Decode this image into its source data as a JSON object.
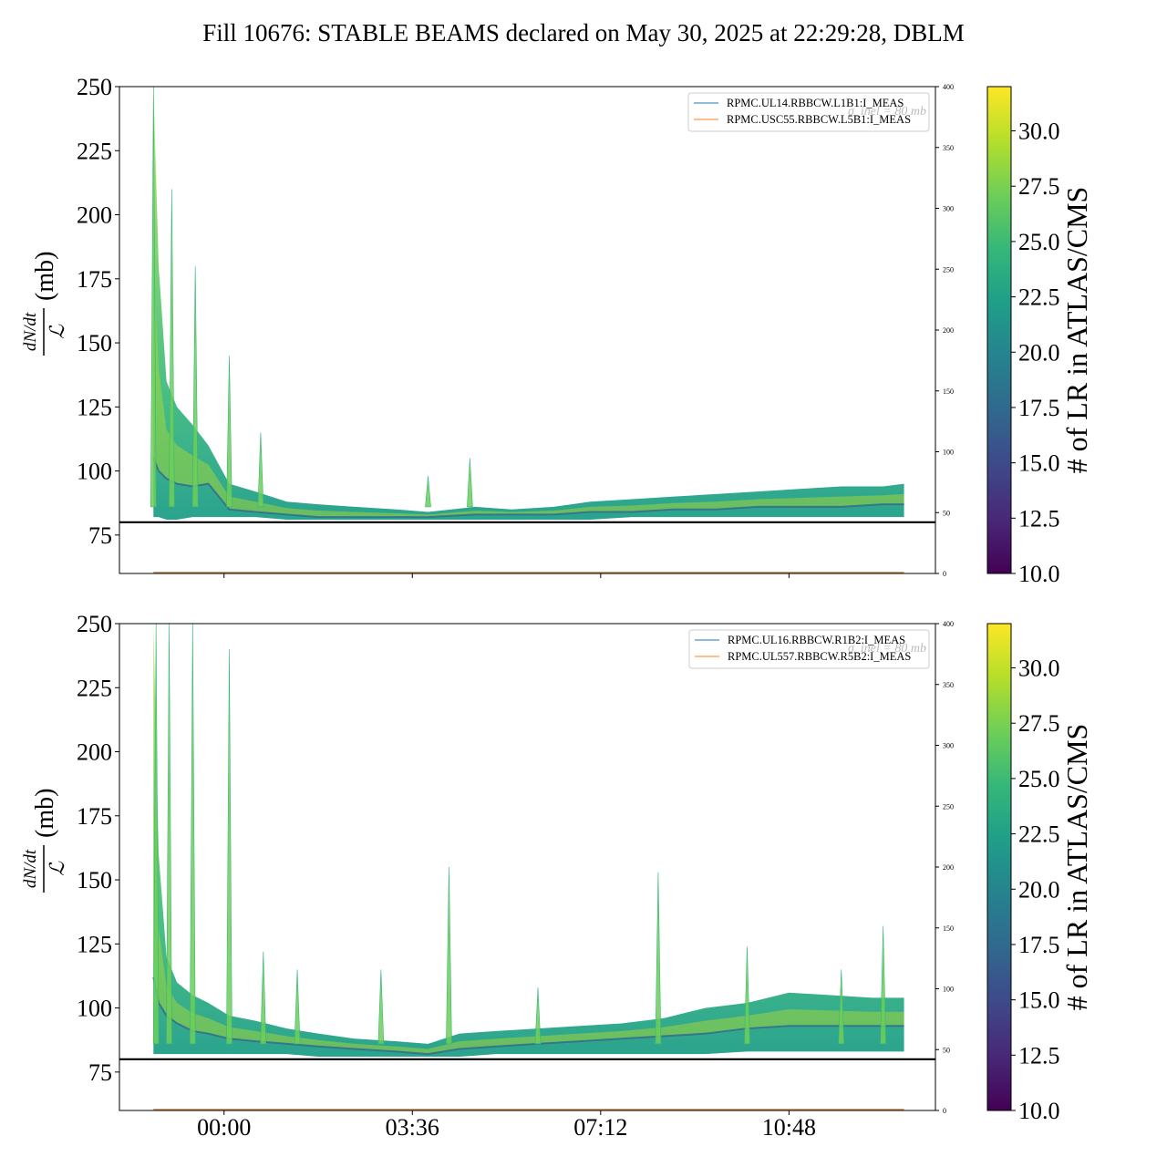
{
  "title": "Fill 10676: STABLE BEAMS declared on May 30, 2025 at 22:29:28, DBLM",
  "colors": {
    "viridis": [
      "#440154",
      "#482878",
      "#3e4989",
      "#31688e",
      "#26828e",
      "#1f9e89",
      "#35b779",
      "#6ece58",
      "#b5de2b",
      "#fde725"
    ],
    "series_blue": "#1f77b4",
    "series_orange": "#ff7f0e",
    "threshold": "#000000"
  },
  "chart_data": [
    {
      "type": "area",
      "panel": "top",
      "ylabel_fraction": {
        "numerator": "dN/dt",
        "denominator": "ℒ"
      },
      "ylabel_unit": "(mb)",
      "ylim": [
        60,
        250
      ],
      "y_ticks": [
        "75",
        "100",
        "125",
        "150",
        "175",
        "200",
        "225",
        "250"
      ],
      "y2lim": [
        0,
        400
      ],
      "y2_ticks": [
        "0",
        "50",
        "100",
        "150",
        "200",
        "250",
        "300",
        "350",
        "400"
      ],
      "x_ticks": [
        "00:00",
        "03:36",
        "07:12",
        "10:48"
      ],
      "x_ticks_visible": false,
      "threshold_mb": 80,
      "overlay_label": "σ_inel = 80 mb",
      "legend": [
        "RPMC.UL14.RBBCW.L1B1:I_MEAS",
        "RPMC.USC55.RBBCW.L5B1:I_MEAS"
      ],
      "legend_position": "top-right",
      "colorbar_label": "# of LR in ATLAS/CMS",
      "colorbar_range": [
        10,
        32
      ],
      "colorbar_ticks": [
        "10.0",
        "12.5",
        "15.0",
        "17.5",
        "20.0",
        "22.5",
        "25.0",
        "27.5",
        "30.0"
      ],
      "x_hours": [
        -1.35,
        -1.25,
        -1.1,
        -0.9,
        -0.6,
        -0.3,
        0.1,
        0.6,
        1.2,
        1.8,
        2.5,
        3.3,
        3.9,
        4.8,
        5.5,
        6.3,
        7.0,
        7.8,
        8.6,
        9.4,
        10.2,
        11.0,
        11.8,
        12.6,
        13.0
      ],
      "band_low": [
        82,
        82,
        81,
        81,
        82,
        82,
        82,
        82,
        81,
        81,
        81,
        81,
        81,
        81,
        81,
        81,
        81,
        82,
        82,
        82,
        82,
        82,
        82,
        82,
        82
      ],
      "band_mid": [
        105,
        100,
        97,
        95,
        94,
        95,
        85,
        84,
        83,
        82,
        82,
        82,
        82,
        83,
        83,
        83,
        84,
        84,
        85,
        85,
        86,
        86,
        86,
        87,
        87
      ],
      "band_high": [
        250,
        180,
        135,
        125,
        118,
        110,
        95,
        92,
        88,
        87,
        86,
        85,
        84,
        86,
        85,
        86,
        88,
        89,
        90,
        91,
        92,
        93,
        94,
        94,
        95
      ],
      "spikes": [
        [
          -1.35,
          250
        ],
        [
          -1.0,
          210
        ],
        [
          -0.55,
          180
        ],
        [
          0.1,
          145
        ],
        [
          0.7,
          115
        ],
        [
          3.9,
          98
        ],
        [
          4.7,
          105
        ]
      ]
    },
    {
      "type": "area",
      "panel": "bottom",
      "ylabel_fraction": {
        "numerator": "dN/dt",
        "denominator": "ℒ"
      },
      "ylabel_unit": "(mb)",
      "ylim": [
        60,
        250
      ],
      "y_ticks": [
        "75",
        "100",
        "125",
        "150",
        "175",
        "200",
        "225",
        "250"
      ],
      "y2lim": [
        0,
        400
      ],
      "y2_ticks": [
        "0",
        "50",
        "100",
        "150",
        "200",
        "250",
        "300",
        "350",
        "400"
      ],
      "x_ticks": [
        "00:00",
        "03:36",
        "07:12",
        "10:48"
      ],
      "x_ticks_visible": true,
      "threshold_mb": 80,
      "overlay_label": "σ_inel = 80 mb",
      "legend": [
        "RPMC.UL16.RBBCW.R1B2:I_MEAS",
        "RPMC.UL557.RBBCW.R5B2:I_MEAS"
      ],
      "legend_position": "top-right",
      "colorbar_label": "# of LR in ATLAS/CMS",
      "colorbar_range": [
        10,
        32
      ],
      "colorbar_ticks": [
        "10.0",
        "12.5",
        "15.0",
        "17.5",
        "20.0",
        "22.5",
        "25.0",
        "27.5",
        "30.0"
      ],
      "x_hours": [
        -1.35,
        -1.25,
        -1.1,
        -0.9,
        -0.6,
        -0.3,
        0.1,
        0.6,
        1.2,
        1.8,
        2.5,
        3.3,
        3.9,
        4.5,
        5.2,
        6.0,
        6.8,
        7.6,
        8.4,
        9.2,
        10.0,
        10.8,
        11.6,
        12.4,
        13.0
      ],
      "band_low": [
        82,
        82,
        82,
        82,
        82,
        82,
        82,
        82,
        82,
        81,
        81,
        81,
        81,
        81,
        82,
        82,
        82,
        82,
        82,
        82,
        83,
        83,
        83,
        83,
        83
      ],
      "band_mid": [
        112,
        102,
        97,
        94,
        91,
        90,
        88,
        87,
        86,
        85,
        84,
        83,
        82,
        84,
        85,
        86,
        87,
        88,
        89,
        90,
        92,
        93,
        93,
        93,
        93
      ],
      "band_high": [
        250,
        160,
        120,
        110,
        105,
        102,
        97,
        95,
        92,
        90,
        88,
        87,
        86,
        90,
        91,
        92,
        93,
        94,
        96,
        100,
        102,
        106,
        105,
        104,
        104
      ],
      "spikes": [
        [
          -1.3,
          250
        ],
        [
          -1.05,
          250
        ],
        [
          -0.6,
          250
        ],
        [
          0.1,
          240
        ],
        [
          0.75,
          122
        ],
        [
          1.4,
          115
        ],
        [
          3.0,
          115
        ],
        [
          4.3,
          155
        ],
        [
          6.0,
          108
        ],
        [
          8.3,
          153
        ],
        [
          10.0,
          124
        ],
        [
          11.8,
          115
        ],
        [
          12.6,
          132
        ]
      ]
    }
  ]
}
